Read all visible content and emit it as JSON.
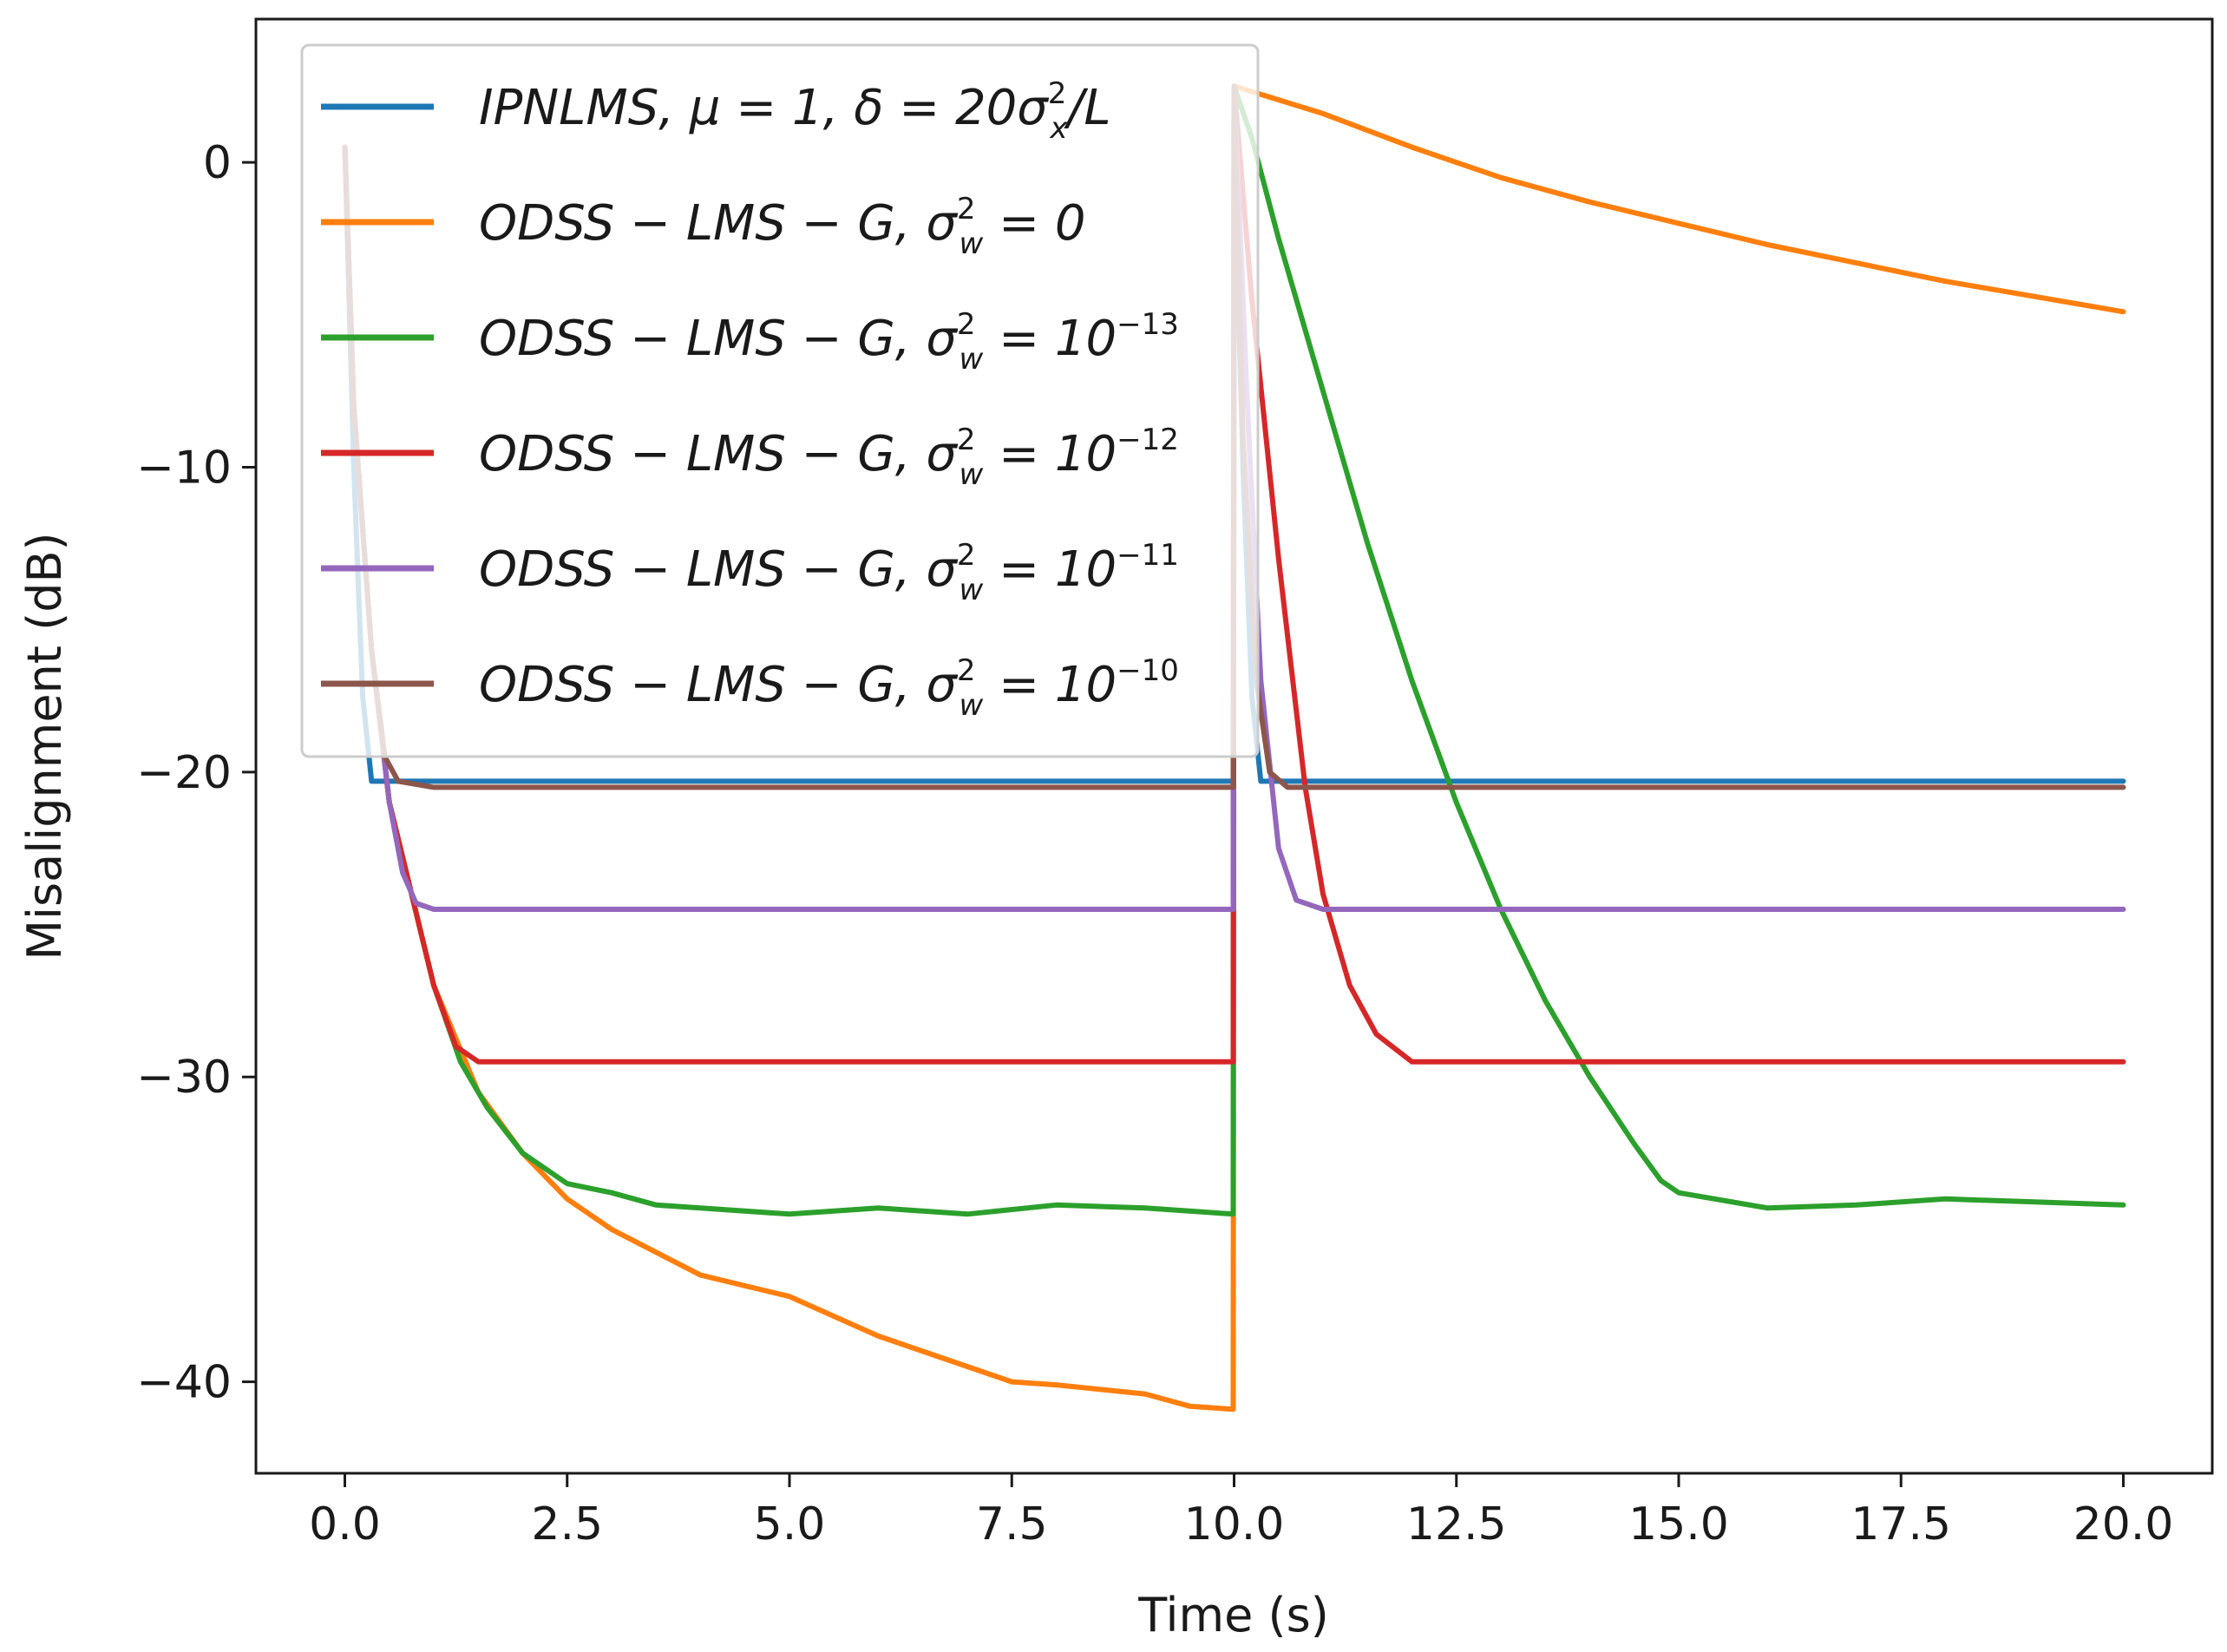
{
  "chart_data": {
    "type": "line",
    "title": "",
    "xlabel": "Time (s)",
    "ylabel": "Misalignment (dB)",
    "xlim": [
      -1.0,
      21.0
    ],
    "ylim": [
      -43.0,
      4.7
    ],
    "xticks": [
      0.0,
      2.5,
      5.0,
      7.5,
      10.0,
      12.5,
      15.0,
      17.5,
      20.0
    ],
    "xtick_labels": [
      "0.0",
      "2.5",
      "5.0",
      "7.5",
      "10.0",
      "12.5",
      "15.0",
      "17.5",
      "20.0"
    ],
    "yticks": [
      0,
      -10,
      -20,
      -30,
      -40
    ],
    "ytick_labels": [
      "0",
      "−10",
      "−20",
      "−30",
      "−40"
    ],
    "grid": false,
    "legend_position": "top-left",
    "series": [
      {
        "name": "IPNLMS, μ = 1, δ = 20σx²/L",
        "legend": {
          "pre": "IPNLMS, μ = 1, δ = 20σ",
          "sup": "2",
          "sub": "x",
          "post": "/L"
        },
        "color": "#1f77b4",
        "x": [
          0.0,
          0.1,
          0.2,
          0.3,
          1.0,
          2.5,
          5.0,
          7.5,
          9.99,
          10.0,
          10.1,
          10.2,
          10.3,
          11.0,
          12.5,
          15.0,
          17.5,
          19.5,
          20.0
        ],
        "y": [
          0.5,
          -10.0,
          -17.5,
          -20.3,
          -20.3,
          -20.3,
          -20.3,
          -20.3,
          -20.3,
          0.5,
          -10.0,
          -17.5,
          -20.3,
          -20.3,
          -20.3,
          -20.3,
          -20.3,
          -20.3,
          -20.3
        ]
      },
      {
        "name": "ODSS − LMS − G, σw² = 0",
        "legend": {
          "pre": "ODSS − LMS − G, σ",
          "sup": "2",
          "sub": "w",
          "post": " = 0"
        },
        "color": "#ff7f0e",
        "x": [
          0.0,
          0.1,
          0.3,
          0.5,
          0.75,
          1.0,
          1.5,
          2.0,
          2.5,
          3.0,
          4.0,
          5.0,
          6.0,
          7.0,
          7.5,
          8.0,
          9.0,
          9.5,
          9.99,
          10.0,
          11.0,
          12.0,
          13.0,
          14.0,
          15.0,
          16.0,
          17.0,
          18.0,
          19.0,
          20.0
        ],
        "y": [
          0.5,
          -8.0,
          -16.0,
          -21.0,
          -24.0,
          -27.0,
          -30.5,
          -32.5,
          -34.0,
          -35.0,
          -36.5,
          -37.2,
          -38.5,
          -39.5,
          -40.0,
          -40.1,
          -40.4,
          -40.8,
          -40.9,
          2.5,
          1.6,
          0.5,
          -0.5,
          -1.3,
          -2.0,
          -2.7,
          -3.3,
          -3.9,
          -4.4,
          -4.9
        ]
      },
      {
        "name": "ODSS − LMS − G, σw² = 10⁻¹³",
        "legend": {
          "pre": "ODSS − LMS − G, σ",
          "sup": "2",
          "sub": "w",
          "post": " = 10",
          "post_sup": "−13"
        },
        "color": "#2ca02c",
        "x": [
          0.0,
          0.1,
          0.3,
          0.5,
          0.75,
          1.0,
          1.3,
          1.6,
          2.0,
          2.5,
          3.0,
          3.5,
          4.0,
          5.0,
          6.0,
          7.0,
          8.0,
          9.0,
          9.99,
          10.0,
          10.2,
          10.5,
          11.0,
          11.5,
          12.0,
          12.5,
          13.0,
          13.5,
          14.0,
          14.5,
          14.8,
          15.0,
          16.0,
          17.0,
          18.0,
          19.0,
          20.0
        ],
        "y": [
          0.5,
          -8.0,
          -16.0,
          -21.0,
          -24.0,
          -27.0,
          -29.5,
          -31.0,
          -32.5,
          -33.5,
          -33.8,
          -34.2,
          -34.3,
          -34.5,
          -34.3,
          -34.5,
          -34.2,
          -34.3,
          -34.5,
          2.5,
          0.8,
          -2.5,
          -7.5,
          -12.5,
          -17.0,
          -21.0,
          -24.5,
          -27.5,
          -30.0,
          -32.2,
          -33.4,
          -33.8,
          -34.3,
          -34.2,
          -34.0,
          -34.1,
          -34.2
        ]
      },
      {
        "name": "ODSS − LMS − G, σw² = 10⁻¹²",
        "legend": {
          "pre": "ODSS − LMS − G, σ",
          "sup": "2",
          "sub": "w",
          "post": " = 10",
          "post_sup": "−12"
        },
        "color": "#d62728",
        "x": [
          0.0,
          0.1,
          0.3,
          0.5,
          0.75,
          1.0,
          1.25,
          1.5,
          2.0,
          3.0,
          5.0,
          7.5,
          9.99,
          10.0,
          10.2,
          10.5,
          10.8,
          11.0,
          11.3,
          11.6,
          12.0,
          13.0,
          15.0,
          17.5,
          20.0
        ],
        "y": [
          0.5,
          -8.0,
          -16.0,
          -21.0,
          -24.0,
          -27.0,
          -29.0,
          -29.5,
          -29.5,
          -29.5,
          -29.5,
          -29.5,
          -29.5,
          2.5,
          -4.5,
          -13.0,
          -20.5,
          -24.0,
          -27.0,
          -28.6,
          -29.5,
          -29.5,
          -29.5,
          -29.5,
          -29.5
        ]
      },
      {
        "name": "ODSS − LMS − G, σw² = 10⁻¹¹",
        "legend": {
          "pre": "ODSS − LMS − G, σ",
          "sup": "2",
          "sub": "w",
          "post": " = 10",
          "post_sup": "−11"
        },
        "color": "#9467bd",
        "x": [
          0.0,
          0.1,
          0.3,
          0.5,
          0.65,
          0.8,
          1.0,
          2.5,
          5.0,
          7.5,
          9.99,
          10.0,
          10.15,
          10.3,
          10.5,
          10.7,
          11.0,
          12.5,
          15.0,
          17.5,
          20.0
        ],
        "y": [
          0.5,
          -8.0,
          -16.0,
          -21.0,
          -23.3,
          -24.3,
          -24.5,
          -24.5,
          -24.5,
          -24.5,
          -24.5,
          2.5,
          -8.0,
          -17.0,
          -22.5,
          -24.2,
          -24.5,
          -24.5,
          -24.5,
          -24.5,
          -24.5
        ]
      },
      {
        "name": "ODSS − LMS − G, σw² = 10⁻¹⁰",
        "legend": {
          "pre": "ODSS − LMS − G, σ",
          "sup": "2",
          "sub": "w",
          "post": " = 10",
          "post_sup": "−10"
        },
        "color": "#8c564b",
        "x": [
          0.0,
          0.1,
          0.3,
          0.45,
          0.6,
          1.0,
          2.5,
          5.0,
          7.5,
          9.99,
          10.0,
          10.1,
          10.25,
          10.4,
          10.6,
          11.0,
          12.5,
          15.0,
          17.5,
          20.0
        ],
        "y": [
          0.5,
          -8.0,
          -16.0,
          -19.5,
          -20.3,
          -20.5,
          -20.5,
          -20.5,
          -20.5,
          -20.5,
          2.5,
          -9.0,
          -17.0,
          -20.0,
          -20.5,
          -20.5,
          -20.5,
          -20.5,
          -20.5,
          -20.5
        ]
      }
    ]
  }
}
